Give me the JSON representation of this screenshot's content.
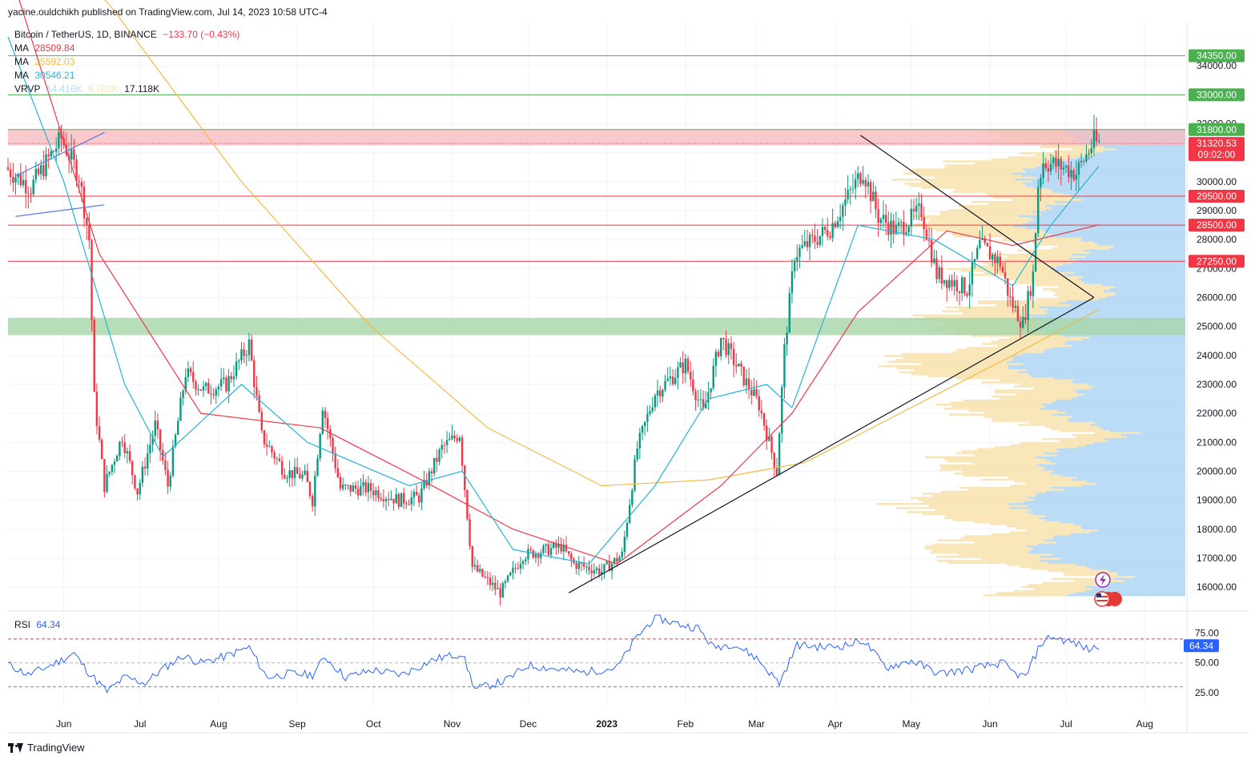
{
  "header": {
    "published_by": "yacine.ouldchikh published on TradingView.com, Jul 14, 2023 10:58 UTC-4"
  },
  "legend": {
    "symbol": "Bitcoin / TetherUS, 1D, BINANCE",
    "change": "−133.70 (−0.43%)",
    "ma1_label": "MA",
    "ma1_value": "28509.84",
    "ma1_color": "#f23645",
    "ma2_label": "MA",
    "ma2_value": "25592.03",
    "ma2_color": "#f5b942",
    "ma3_label": "MA",
    "ma3_value": "30546.21",
    "ma3_color": "#26b5d4",
    "vrvp_label": "VRVP",
    "vrvp_v1": "14.416K",
    "vrvp_v2": "6.702K",
    "vrvp_v3": "17.118K"
  },
  "rsi": {
    "label": "RSI",
    "value": "64.34",
    "color": "#2962ff"
  },
  "brand": {
    "name": "TradingView"
  },
  "chart_data": {
    "type": "candlestick",
    "title": "Bitcoin / TetherUS, 1D, BINANCE",
    "y_ticks": [
      16000,
      17000,
      18000,
      19000,
      20000,
      21000,
      22000,
      23000,
      24000,
      25000,
      26000,
      27000,
      28000,
      29000,
      30000,
      31000,
      32000,
      33000,
      34000
    ],
    "y_tick_labels": [
      "16000.00",
      "17000.00",
      "18000.00",
      "19000.00",
      "20000.00",
      "21000.00",
      "22000.00",
      "23000.00",
      "24000.00",
      "25000.00",
      "26000.00",
      "27000.00",
      "28000.00",
      "29000.00",
      "30000.00",
      "31000.00",
      "32000.00",
      "33000.00",
      "34000.00"
    ],
    "ylim": [
      15200,
      35500
    ],
    "x_tick_labels": [
      "Jun",
      "Jul",
      "Aug",
      "Sep",
      "Oct",
      "Nov",
      "Dec",
      "2023",
      "Feb",
      "Mar",
      "Apr",
      "May",
      "Jun",
      "Jul",
      "Aug"
    ],
    "x_tick_dates": [
      "2022-06-01",
      "2022-07-01",
      "2022-08-01",
      "2022-09-01",
      "2022-10-01",
      "2022-11-01",
      "2022-12-01",
      "2023-01-01",
      "2023-02-01",
      "2023-03-01",
      "2023-04-01",
      "2023-05-01",
      "2023-06-01",
      "2023-07-01",
      "2023-08-01"
    ],
    "xlim": [
      "2022-05-10",
      "2023-08-17"
    ],
    "price_path": [
      [
        "2022-05-10",
        30500
      ],
      [
        "2022-05-20",
        29800
      ],
      [
        "2022-06-01",
        31500
      ],
      [
        "2022-06-08",
        30200
      ],
      [
        "2022-06-12",
        28000
      ],
      [
        "2022-06-14",
        22500
      ],
      [
        "2022-06-18",
        19500
      ],
      [
        "2022-06-25",
        21200
      ],
      [
        "2022-07-01",
        19300
      ],
      [
        "2022-07-08",
        21600
      ],
      [
        "2022-07-13",
        19500
      ],
      [
        "2022-07-20",
        23400
      ],
      [
        "2022-07-27",
        22800
      ],
      [
        "2022-08-05",
        23000
      ],
      [
        "2022-08-14",
        24400
      ],
      [
        "2022-08-19",
        21200
      ],
      [
        "2022-08-28",
        20000
      ],
      [
        "2022-09-05",
        19800
      ],
      [
        "2022-09-08",
        19000
      ],
      [
        "2022-09-12",
        22300
      ],
      [
        "2022-09-19",
        19400
      ],
      [
        "2022-09-30",
        19400
      ],
      [
        "2022-10-12",
        19000
      ],
      [
        "2022-10-20",
        19100
      ],
      [
        "2022-10-29",
        20800
      ],
      [
        "2022-11-05",
        21300
      ],
      [
        "2022-11-08",
        18500
      ],
      [
        "2022-11-10",
        16700
      ],
      [
        "2022-11-21",
        15800
      ],
      [
        "2022-11-30",
        17100
      ],
      [
        "2022-12-15",
        17400
      ],
      [
        "2022-12-20",
        16800
      ],
      [
        "2022-12-31",
        16550
      ],
      [
        "2023-01-08",
        17100
      ],
      [
        "2023-01-14",
        20800
      ],
      [
        "2023-01-21",
        22700
      ],
      [
        "2023-02-02",
        23700
      ],
      [
        "2023-02-09",
        22000
      ],
      [
        "2023-02-16",
        24600
      ],
      [
        "2023-02-25",
        23200
      ],
      [
        "2023-03-03",
        22300
      ],
      [
        "2023-03-10",
        20000
      ],
      [
        "2023-03-13",
        24200
      ],
      [
        "2023-03-17",
        27500
      ],
      [
        "2023-03-31",
        28400
      ],
      [
        "2023-04-13",
        30400
      ],
      [
        "2023-04-19",
        28800
      ],
      [
        "2023-04-26",
        28300
      ],
      [
        "2023-05-06",
        29000
      ],
      [
        "2023-05-12",
        26800
      ],
      [
        "2023-05-24",
        26300
      ],
      [
        "2023-05-29",
        27800
      ],
      [
        "2023-06-06",
        27200
      ],
      [
        "2023-06-10",
        25900
      ],
      [
        "2023-06-15",
        25100
      ],
      [
        "2023-06-19",
        26800
      ],
      [
        "2023-06-21",
        29900
      ],
      [
        "2023-06-23",
        30700
      ],
      [
        "2023-07-01",
        30500
      ],
      [
        "2023-07-06",
        30300
      ],
      [
        "2023-07-13",
        31400
      ],
      [
        "2023-07-14",
        31320
      ]
    ],
    "ma_50_path": [
      [
        "2022-05-10",
        37500
      ],
      [
        "2022-06-15",
        27500
      ],
      [
        "2022-07-25",
        22000
      ],
      [
        "2022-09-10",
        21500
      ],
      [
        "2022-10-20",
        19700
      ],
      [
        "2022-11-25",
        18000
      ],
      [
        "2023-01-05",
        16800
      ],
      [
        "2023-02-15",
        19500
      ],
      [
        "2023-03-15",
        22000
      ],
      [
        "2023-04-10",
        25500
      ],
      [
        "2023-05-15",
        28300
      ],
      [
        "2023-06-10",
        27800
      ],
      [
        "2023-07-14",
        28510
      ]
    ],
    "ma_200_path": [
      [
        "2022-05-10",
        40000
      ],
      [
        "2022-06-20",
        36000
      ],
      [
        "2022-08-10",
        30000
      ],
      [
        "2022-09-30",
        25000
      ],
      [
        "2022-11-15",
        21500
      ],
      [
        "2022-12-30",
        19500
      ],
      [
        "2023-02-10",
        19700
      ],
      [
        "2023-03-20",
        20300
      ],
      [
        "2023-05-01",
        22200
      ],
      [
        "2023-06-10",
        24000
      ],
      [
        "2023-07-14",
        25590
      ]
    ],
    "ma_20_path": [
      [
        "2022-05-10",
        35000
      ],
      [
        "2022-06-01",
        30000
      ],
      [
        "2022-06-25",
        23000
      ],
      [
        "2022-07-10",
        20500
      ],
      [
        "2022-08-10",
        23000
      ],
      [
        "2022-09-05",
        21000
      ],
      [
        "2022-10-15",
        19500
      ],
      [
        "2022-11-05",
        20000
      ],
      [
        "2022-11-25",
        17300
      ],
      [
        "2022-12-25",
        16800
      ],
      [
        "2023-01-20",
        19500
      ],
      [
        "2023-02-10",
        22500
      ],
      [
        "2023-03-05",
        23000
      ],
      [
        "2023-03-15",
        22200
      ],
      [
        "2023-04-10",
        28500
      ],
      [
        "2023-05-10",
        28000
      ],
      [
        "2023-06-10",
        26400
      ],
      [
        "2023-06-25",
        28500
      ],
      [
        "2023-07-14",
        30546
      ]
    ],
    "levels": [
      {
        "value": 34350,
        "label": "34350.00",
        "color": "#4caf50"
      },
      {
        "value": 33000,
        "label": "33000.00",
        "color": "#4caf50"
      },
      {
        "value": 31800,
        "label": "31800.00",
        "color": "#4caf50"
      },
      {
        "value": 29500,
        "label": "29500.00",
        "color": "#f23645"
      },
      {
        "value": 28500,
        "label": "28500.00",
        "color": "#f23645"
      },
      {
        "value": 27250,
        "label": "27250.00",
        "color": "#f23645"
      }
    ],
    "current_price": {
      "value": 31320.53,
      "label": "31320.53",
      "countdown": "09:02:00",
      "color": "#f23645"
    },
    "zones": [
      {
        "from": 31250,
        "to": 31800,
        "color": "#f8bbc0"
      },
      {
        "from": 24700,
        "to": 25300,
        "color": "#a5d6a7"
      }
    ],
    "trendlines": [
      {
        "from": [
          "2023-04-11",
          31600
        ],
        "to": [
          "2023-07-12",
          26000
        ],
        "color": "#131722"
      },
      {
        "from": [
          "2022-12-17",
          15800
        ],
        "to": [
          "2023-07-12",
          26000
        ],
        "color": "#131722"
      },
      {
        "from": [
          "2022-05-13",
          30200
        ],
        "to": [
          "2022-06-17",
          31700
        ],
        "color": "#5b7bd9"
      },
      {
        "from": [
          "2022-05-13",
          28800
        ],
        "to": [
          "2022-06-17",
          29200
        ],
        "color": "#5b7bd9"
      }
    ],
    "volume_profile_range": [
      15700,
      31800
    ],
    "rsi_ticks": [
      25,
      50,
      75
    ],
    "rsi_tick_labels": [
      "25.00",
      "50.00",
      "75.00"
    ],
    "rsi_ylim": [
      15,
      92
    ],
    "rsi_bands": {
      "upper": 70,
      "middle": 50,
      "lower": 30
    },
    "rsi_path": [
      [
        "2022-05-10",
        49
      ],
      [
        "2022-05-18",
        40
      ],
      [
        "2022-05-28",
        49
      ],
      [
        "2022-06-05",
        58
      ],
      [
        "2022-06-10",
        44
      ],
      [
        "2022-06-18",
        26
      ],
      [
        "2022-06-25",
        38
      ],
      [
        "2022-07-03",
        33
      ],
      [
        "2022-07-10",
        45
      ],
      [
        "2022-07-18",
        56
      ],
      [
        "2022-07-25",
        50
      ],
      [
        "2022-08-03",
        55
      ],
      [
        "2022-08-13",
        63
      ],
      [
        "2022-08-20",
        38
      ],
      [
        "2022-08-29",
        41
      ],
      [
        "2022-09-07",
        40
      ],
      [
        "2022-09-12",
        55
      ],
      [
        "2022-09-20",
        38
      ],
      [
        "2022-10-01",
        44
      ],
      [
        "2022-10-12",
        40
      ],
      [
        "2022-10-25",
        53
      ],
      [
        "2022-11-05",
        58
      ],
      [
        "2022-11-10",
        28
      ],
      [
        "2022-11-22",
        35
      ],
      [
        "2022-12-01",
        48
      ],
      [
        "2022-12-15",
        44
      ],
      [
        "2022-12-22",
        42
      ],
      [
        "2023-01-05",
        46
      ],
      [
        "2023-01-13",
        72
      ],
      [
        "2023-01-20",
        88
      ],
      [
        "2023-01-30",
        82
      ],
      [
        "2023-02-06",
        79
      ],
      [
        "2023-02-12",
        63
      ],
      [
        "2023-02-20",
        66
      ],
      [
        "2023-03-01",
        54
      ],
      [
        "2023-03-10",
        33
      ],
      [
        "2023-03-17",
        65
      ],
      [
        "2023-03-28",
        63
      ],
      [
        "2023-04-06",
        65
      ],
      [
        "2023-04-12",
        69
      ],
      [
        "2023-04-21",
        46
      ],
      [
        "2023-05-01",
        52
      ],
      [
        "2023-05-12",
        41
      ],
      [
        "2023-05-25",
        45
      ],
      [
        "2023-06-06",
        50
      ],
      [
        "2023-06-10",
        42
      ],
      [
        "2023-06-15",
        38
      ],
      [
        "2023-06-21",
        66
      ],
      [
        "2023-06-25",
        72
      ],
      [
        "2023-07-05",
        66
      ],
      [
        "2023-07-10",
        61
      ],
      [
        "2023-07-14",
        64.34
      ]
    ]
  }
}
